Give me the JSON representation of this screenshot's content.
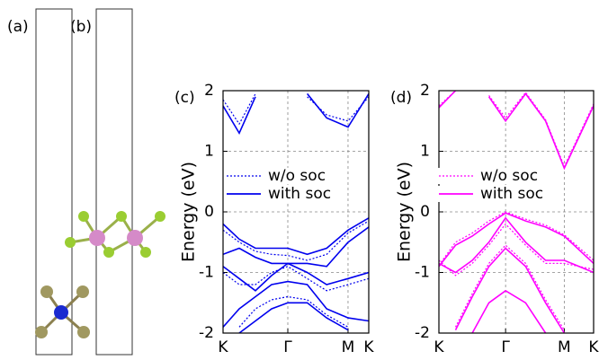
{
  "panel_labels": [
    "(a)",
    "(b)"
  ],
  "chart_data": [
    {
      "type": "line",
      "panel_label": "(c)",
      "y_label": "Energy (eV)",
      "x": [
        0,
        0.25,
        0.5,
        0.75,
        1,
        1.3,
        1.6,
        1.93,
        2.25
      ],
      "xlim": [
        0,
        2.25
      ],
      "xticks": [
        {
          "value": 0,
          "label": "K"
        },
        {
          "value": 1,
          "label": "Γ"
        },
        {
          "value": 1.93,
          "label": "M"
        },
        {
          "value": 2.25,
          "label": "K"
        }
      ],
      "ylim": [
        -2,
        2
      ],
      "yticks": [
        -2,
        -1,
        0,
        1,
        2
      ],
      "grid": true,
      "series": [
        {
          "name": "w/o soc",
          "color": "#0000ee",
          "line_style": "dotted",
          "values": [
            1.85,
            1.45,
            1.95,
            null,
            null,
            1.9,
            1.6,
            1.5,
            1.9
          ]
        },
        {
          "name": "with soc",
          "color": "#0000ee",
          "line_style": "solid",
          "values": [
            1.75,
            1.3,
            1.9,
            null,
            null,
            1.95,
            1.55,
            1.4,
            1.95
          ]
        },
        {
          "color": "#0000ee",
          "line_style": "dotted",
          "values": [
            -0.3,
            -0.5,
            -0.65,
            -0.7,
            -0.72,
            -0.8,
            -0.7,
            -0.35,
            -0.15
          ]
        },
        {
          "color": "#0000ee",
          "line_style": "dotted",
          "values": [
            -1.0,
            -1.2,
            -1.2,
            -1.0,
            -0.9,
            -1.1,
            -1.3,
            -1.2,
            -1.1
          ]
        },
        {
          "color": "#0000ee",
          "line_style": "dotted",
          "values": [
            null,
            -1.9,
            -1.6,
            -1.45,
            -1.4,
            -1.45,
            -1.7,
            -1.9,
            null
          ]
        },
        {
          "color": "#0000ee",
          "line_style": "solid",
          "values": [
            -0.2,
            -0.45,
            -0.6,
            -0.6,
            -0.6,
            -0.7,
            -0.6,
            -0.3,
            -0.1
          ]
        },
        {
          "color": "#0000ee",
          "line_style": "solid",
          "values": [
            -0.7,
            -0.6,
            -0.75,
            -0.85,
            -0.85,
            -0.85,
            -0.9,
            -0.5,
            -0.25
          ]
        },
        {
          "color": "#0000ee",
          "line_style": "solid",
          "values": [
            -0.9,
            -1.1,
            -1.3,
            -1.05,
            -0.85,
            -1.0,
            -1.2,
            -1.1,
            -1.0
          ]
        },
        {
          "color": "#0000ee",
          "line_style": "solid",
          "values": [
            -1.9,
            -1.6,
            -1.4,
            -1.2,
            -1.15,
            -1.2,
            -1.6,
            -1.75,
            -1.8
          ]
        },
        {
          "color": "#0000ee",
          "line_style": "solid",
          "values": [
            null,
            -2.0,
            -1.8,
            -1.6,
            -1.5,
            -1.5,
            -1.75,
            -1.95,
            null
          ]
        }
      ]
    },
    {
      "type": "line",
      "panel_label": "(d)",
      "y_label": "Energy (eV)",
      "x": [
        0,
        0.25,
        0.5,
        0.75,
        1,
        1.3,
        1.6,
        1.88,
        2.32
      ],
      "xlim": [
        0,
        2.32
      ],
      "xticks": [
        {
          "value": 0,
          "label": "K"
        },
        {
          "value": 1,
          "label": "Γ"
        },
        {
          "value": 1.88,
          "label": "M"
        },
        {
          "value": 2.32,
          "label": "K"
        }
      ],
      "ylim": [
        -2,
        2
      ],
      "yticks": [
        -2,
        -1,
        0,
        1,
        2
      ],
      "grid": true,
      "series": [
        {
          "name": "w/o soc",
          "color": "#ff00ff",
          "line_style": "dotted",
          "values": [
            1.75,
            2.0,
            null,
            1.92,
            1.55,
            1.97,
            1.52,
            0.75,
            1.78
          ]
        },
        {
          "name": "with soc",
          "color": "#ff00ff",
          "line_style": "solid",
          "values": [
            1.72,
            2.0,
            null,
            1.9,
            1.5,
            1.95,
            1.5,
            0.72,
            1.75
          ]
        },
        {
          "color": "#ff00ff",
          "line_style": "dotted",
          "values": [
            -0.88,
            -0.5,
            -0.35,
            -0.15,
            0.0,
            -0.12,
            -0.22,
            -0.38,
            -0.8
          ]
        },
        {
          "color": "#ff00ff",
          "line_style": "dotted",
          "values": [
            -0.8,
            -1.05,
            -0.85,
            -0.55,
            -0.2,
            -0.55,
            -0.85,
            -0.85,
            -0.95
          ]
        },
        {
          "color": "#ff00ff",
          "line_style": "dotted",
          "values": [
            null,
            -1.9,
            -1.35,
            -0.85,
            -0.55,
            -0.85,
            -1.45,
            -1.95,
            null
          ]
        },
        {
          "color": "#ff00ff",
          "line_style": "solid",
          "values": [
            -0.9,
            -0.55,
            -0.4,
            -0.2,
            -0.02,
            -0.15,
            -0.25,
            -0.4,
            -0.85
          ]
        },
        {
          "color": "#ff00ff",
          "line_style": "solid",
          "values": [
            -0.85,
            -1.0,
            -0.8,
            -0.5,
            -0.1,
            -0.5,
            -0.8,
            -0.8,
            -1.0
          ]
        },
        {
          "color": "#ff00ff",
          "line_style": "solid",
          "values": [
            null,
            -1.95,
            -1.4,
            -0.9,
            -0.6,
            -0.9,
            -1.5,
            -2.0,
            null
          ]
        },
        {
          "color": "#ff00ff",
          "line_style": "solid",
          "values": [
            null,
            null,
            -2.0,
            -1.5,
            -1.3,
            -1.5,
            -2.0,
            null,
            null
          ]
        }
      ]
    }
  ]
}
